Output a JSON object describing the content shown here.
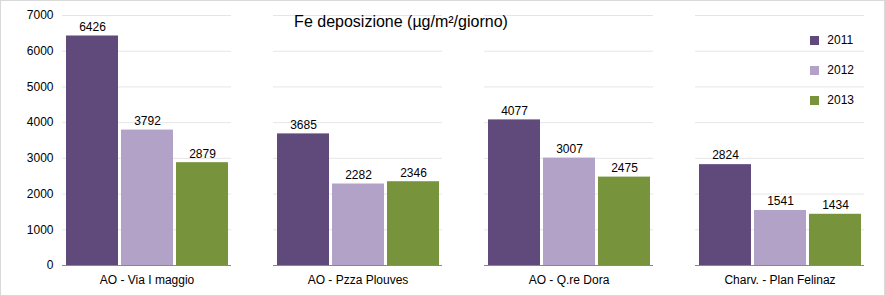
{
  "chart_data": {
    "type": "bar",
    "title": "Fe deposizione (µg/m²/giorno)",
    "categories": [
      "AO - Via I maggio",
      "AO - Pzza Plouves",
      "AO - Q.re Dora",
      "Charv. - Plan Felinaz"
    ],
    "series": [
      {
        "name": "2011",
        "color": "#604a7b",
        "values": [
          6426,
          3685,
          4077,
          2824
        ]
      },
      {
        "name": "2012",
        "color": "#b3a2c7",
        "values": [
          3792,
          2282,
          3007,
          1541
        ]
      },
      {
        "name": "2013",
        "color": "#77933c",
        "values": [
          2879,
          2346,
          2475,
          1434
        ]
      }
    ],
    "ylim": [
      0,
      7000
    ],
    "yticks": [
      0,
      1000,
      2000,
      3000,
      4000,
      5000,
      6000,
      7000
    ],
    "grid": true,
    "legend": "right",
    "data_labels": true
  }
}
